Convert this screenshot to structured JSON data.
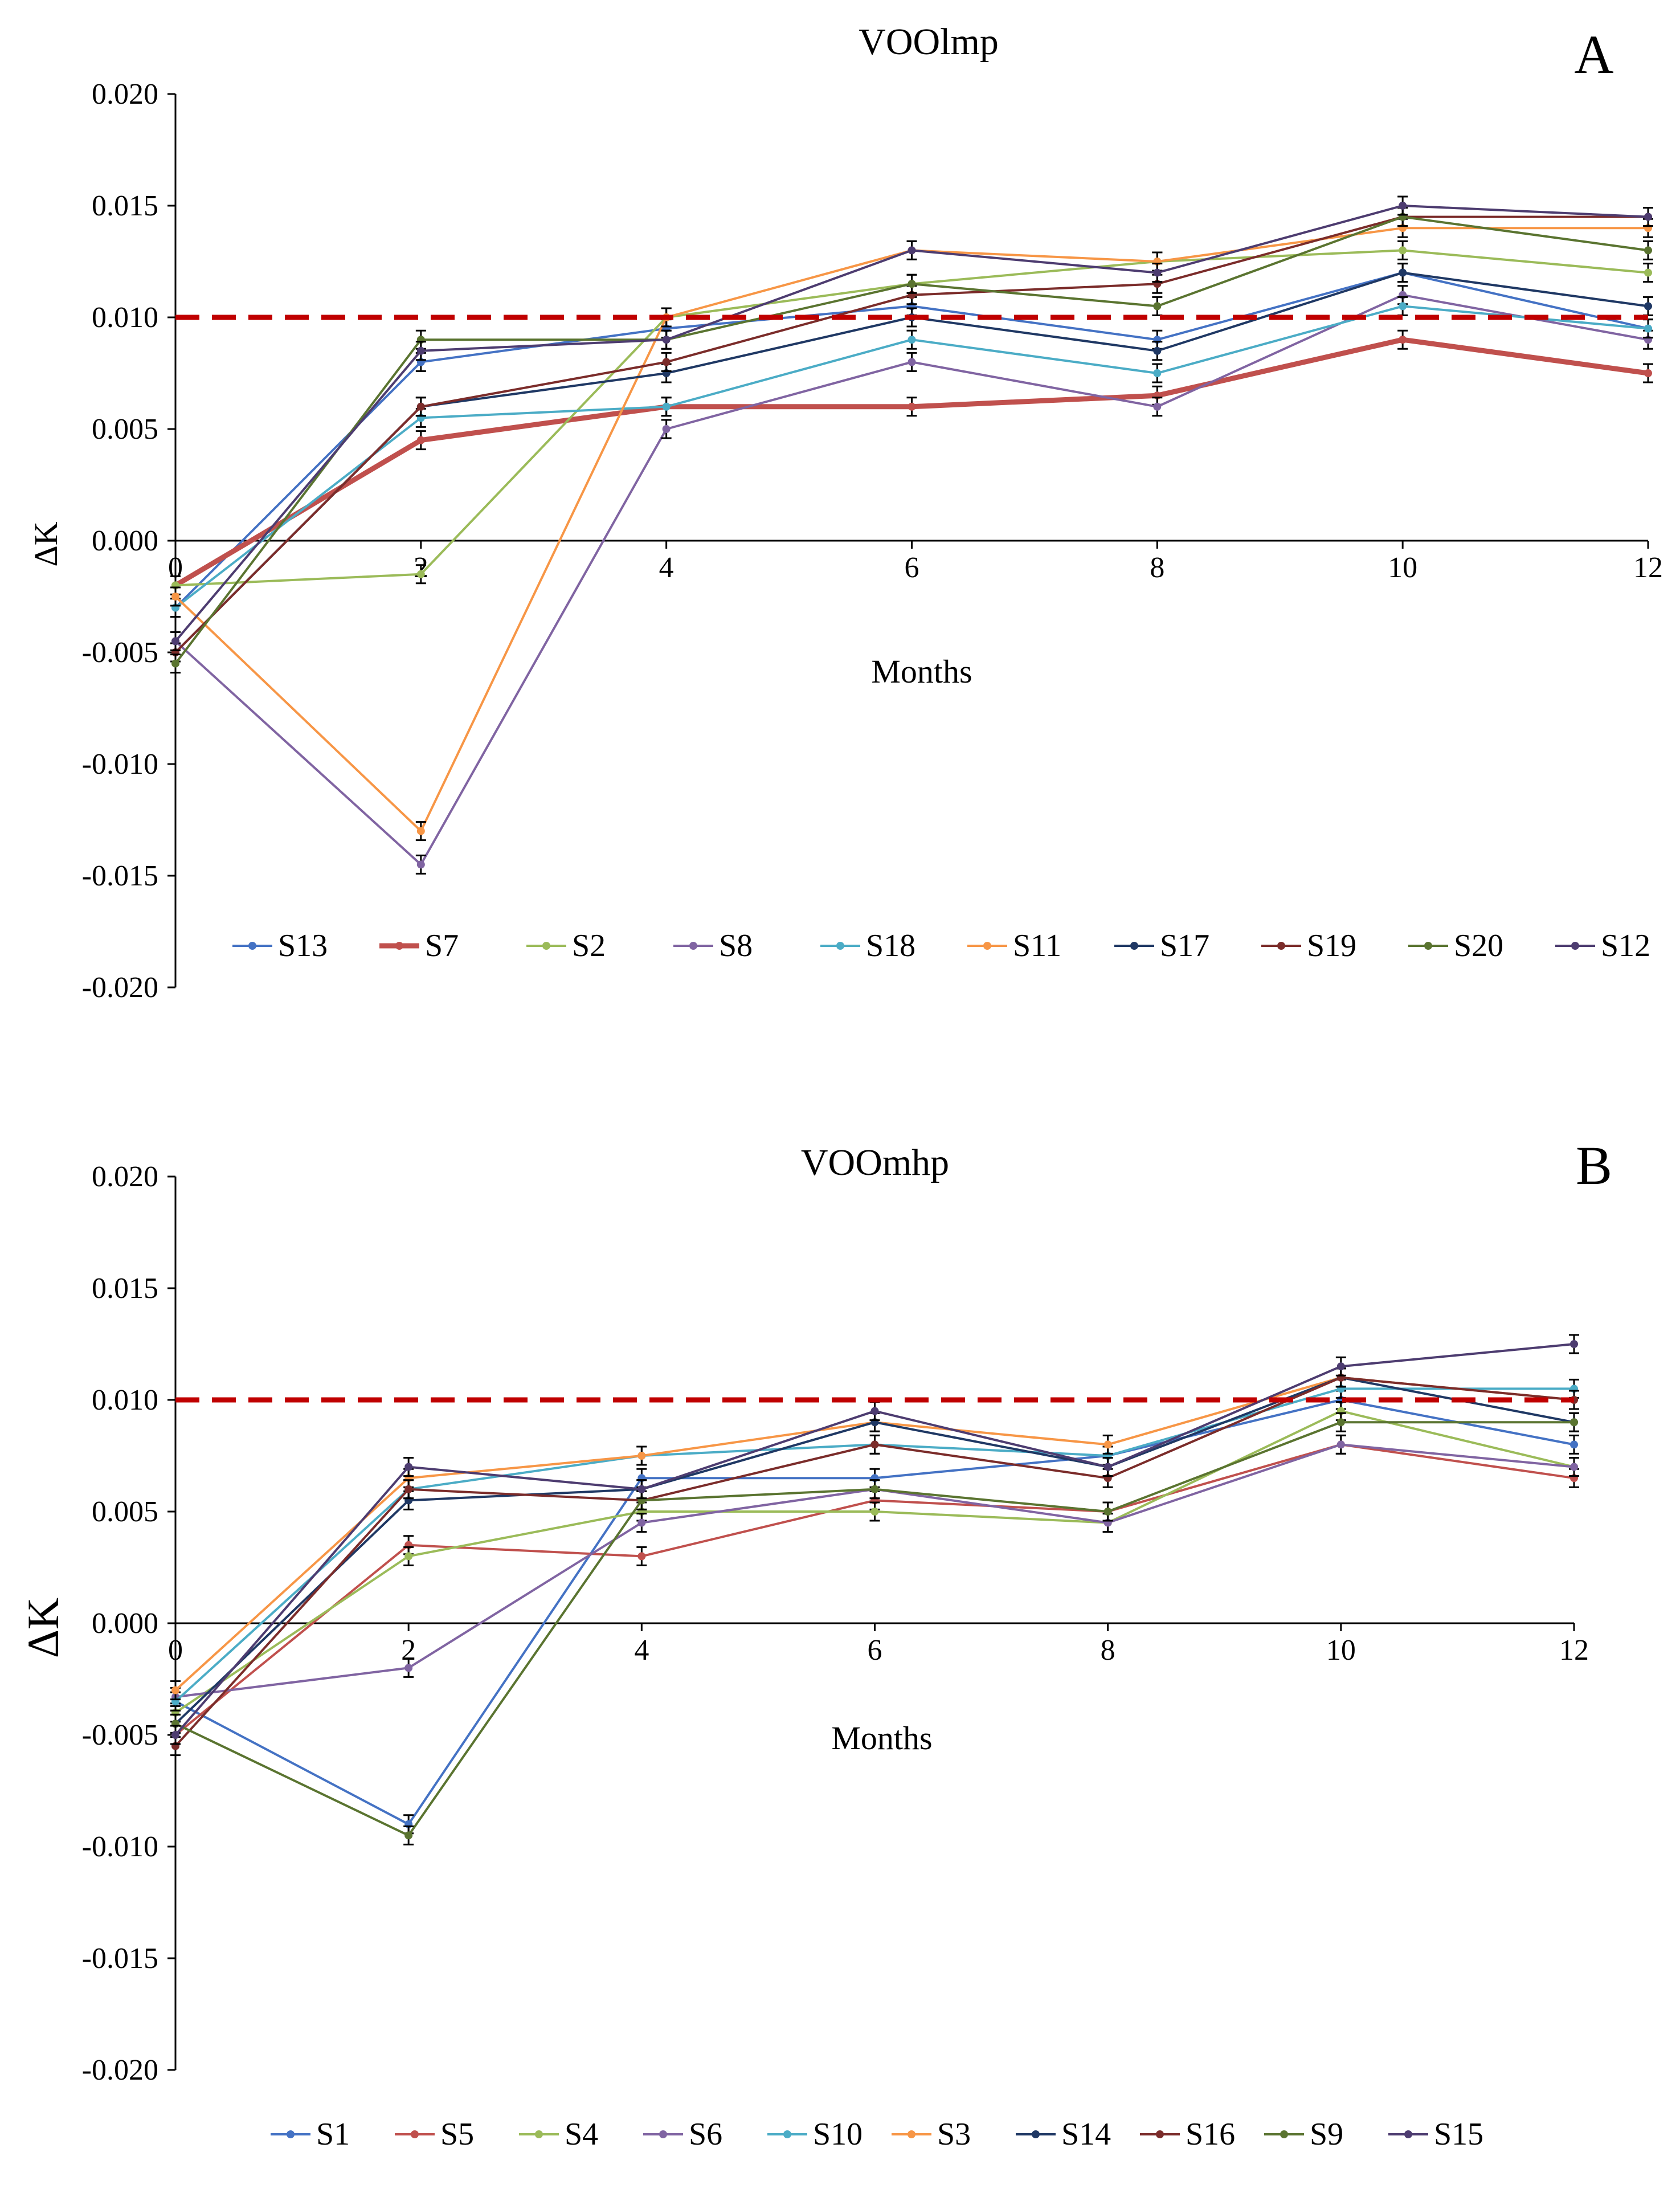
{
  "chart_data": [
    {
      "type": "line",
      "panel_label": "A",
      "title": "VOOlmp",
      "xlabel": "Months",
      "ylabel": "ΔK",
      "x": [
        0,
        2,
        4,
        6,
        8,
        10,
        12
      ],
      "xlim": [
        0,
        12
      ],
      "ylim": [
        -0.02,
        0.02
      ],
      "ytick_step": 0.005,
      "ytick_labels": [
        "-0.020",
        "-0.015",
        "-0.010",
        "-0.005",
        "0.000",
        "0.005",
        "0.010",
        "0.015",
        "0.020"
      ],
      "xtick_labels": [
        "0",
        "2",
        "4",
        "6",
        "8",
        "10",
        "12"
      ],
      "threshold": 0.01,
      "threshold_color": "#c00000",
      "legend_position": "bottom",
      "grid": false,
      "series": [
        {
          "name": "S13",
          "color": "#4472c4",
          "width": 4,
          "values": [
            -0.003,
            0.008,
            0.0095,
            0.0105,
            0.009,
            0.012,
            0.0095
          ]
        },
        {
          "name": "S7",
          "color": "#c0504d",
          "width": 9,
          "values": [
            -0.002,
            0.0045,
            0.006,
            0.006,
            0.0065,
            0.009,
            0.0075
          ]
        },
        {
          "name": "S2",
          "color": "#9bbb59",
          "width": 4,
          "values": [
            -0.002,
            -0.0015,
            0.01,
            0.0115,
            0.0125,
            0.013,
            0.012
          ]
        },
        {
          "name": "S8",
          "color": "#8064a2",
          "width": 4,
          "values": [
            -0.0045,
            -0.0145,
            0.005,
            0.008,
            0.006,
            0.011,
            0.009
          ]
        },
        {
          "name": "S18",
          "color": "#4bacc6",
          "width": 4,
          "values": [
            -0.003,
            0.0055,
            0.006,
            0.009,
            0.0075,
            0.0105,
            0.0095
          ]
        },
        {
          "name": "S11",
          "color": "#f79646",
          "width": 4,
          "values": [
            -0.0025,
            -0.013,
            0.01,
            0.013,
            0.0125,
            0.014,
            0.014
          ]
        },
        {
          "name": "S17",
          "color": "#1f3864",
          "width": 4,
          "values": [
            -0.005,
            0.006,
            0.0075,
            0.01,
            0.0085,
            0.012,
            0.0105
          ]
        },
        {
          "name": "S19",
          "color": "#7b2c2a",
          "width": 4,
          "values": [
            -0.005,
            0.006,
            0.008,
            0.011,
            0.0115,
            0.0145,
            0.0145
          ]
        },
        {
          "name": "S20",
          "color": "#5a7430",
          "width": 4,
          "values": [
            -0.0055,
            0.009,
            0.009,
            0.0115,
            0.0105,
            0.0145,
            0.013
          ]
        },
        {
          "name": "S12",
          "color": "#4d3c70",
          "width": 4,
          "values": [
            -0.0045,
            0.0085,
            0.009,
            0.013,
            0.012,
            0.015,
            0.0145
          ]
        }
      ]
    },
    {
      "type": "line",
      "panel_label": "B",
      "title": "VOOmhp",
      "xlabel": "Months",
      "ylabel": "ΔK",
      "x": [
        0,
        2,
        4,
        6,
        8,
        10,
        12
      ],
      "xlim": [
        0,
        12
      ],
      "ylim": [
        -0.02,
        0.02
      ],
      "ytick_step": 0.005,
      "ytick_labels": [
        "-0.020",
        "-0.015",
        "-0.010",
        "-0.005",
        "0.000",
        "0.005",
        "0.010",
        "0.015",
        "0.020"
      ],
      "xtick_labels": [
        "0",
        "2",
        "4",
        "6",
        "8",
        "10",
        "12"
      ],
      "threshold": 0.01,
      "threshold_color": "#c00000",
      "legend_position": "bottom",
      "grid": false,
      "series": [
        {
          "name": "S1",
          "color": "#4472c4",
          "width": 4,
          "values": [
            -0.0035,
            -0.009,
            0.0065,
            0.0065,
            0.0075,
            0.01,
            0.008
          ]
        },
        {
          "name": "S5",
          "color": "#c0504d",
          "width": 4,
          "values": [
            -0.005,
            0.0035,
            0.003,
            0.0055,
            0.005,
            0.008,
            0.0065
          ]
        },
        {
          "name": "S4",
          "color": "#9bbb59",
          "width": 4,
          "values": [
            -0.004,
            0.003,
            0.005,
            0.005,
            0.0045,
            0.0095,
            0.007
          ]
        },
        {
          "name": "S6",
          "color": "#8064a2",
          "width": 4,
          "values": [
            -0.0033,
            -0.002,
            0.0045,
            0.006,
            0.0045,
            0.008,
            0.007
          ]
        },
        {
          "name": "S10",
          "color": "#4bacc6",
          "width": 4,
          "values": [
            -0.0035,
            0.006,
            0.0075,
            0.008,
            0.0075,
            0.0105,
            0.0105
          ]
        },
        {
          "name": "S3",
          "color": "#f79646",
          "width": 4,
          "values": [
            -0.003,
            0.0065,
            0.0075,
            0.009,
            0.008,
            0.011,
            0.01
          ]
        },
        {
          "name": "S14",
          "color": "#1f3864",
          "width": 4,
          "values": [
            -0.0045,
            0.0055,
            0.006,
            0.009,
            0.007,
            0.011,
            0.009
          ]
        },
        {
          "name": "S16",
          "color": "#7b2c2a",
          "width": 4,
          "values": [
            -0.0055,
            0.006,
            0.0055,
            0.008,
            0.0065,
            0.011,
            0.01
          ]
        },
        {
          "name": "S9",
          "color": "#5a7430",
          "width": 4,
          "values": [
            -0.0045,
            -0.0095,
            0.0055,
            0.006,
            0.005,
            0.009,
            0.009
          ]
        },
        {
          "name": "S15",
          "color": "#4d3c70",
          "width": 4,
          "values": [
            -0.005,
            0.007,
            0.006,
            0.0095,
            0.007,
            0.0115,
            0.0125
          ]
        }
      ]
    }
  ]
}
